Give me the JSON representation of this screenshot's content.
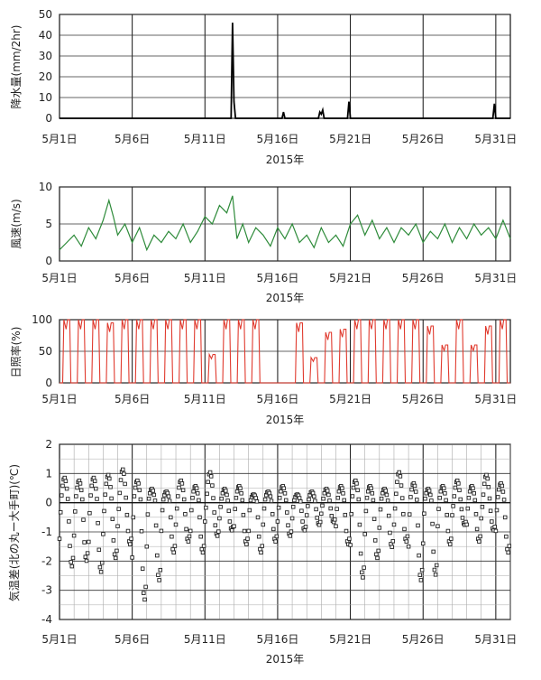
{
  "chart_data": [
    {
      "type": "line",
      "ylabel": "降水量(mm/2hr)",
      "xlabel": "2015年",
      "ylim": [
        0,
        50
      ],
      "yticks": [
        "0",
        "10",
        "20",
        "30",
        "40",
        "50"
      ],
      "xticks": [
        "5月1日",
        "5月6日",
        "5月11日",
        "5月16日",
        "5月21日",
        "5月26日",
        "5月31日"
      ],
      "xrange_days": [
        1,
        32
      ],
      "color": "#000000",
      "series": [
        {
          "x": [
            1,
            12.8,
            12.9,
            13.0,
            13.1,
            16.3,
            16.4,
            16.5,
            18.8,
            18.9,
            19.0,
            19.1,
            19.2,
            20.8,
            20.9,
            21.0,
            30.8,
            30.9,
            31.0,
            32
          ],
          "values": [
            0,
            0,
            46,
            8,
            0,
            0,
            3,
            0,
            0,
            3,
            2,
            4,
            0,
            0,
            8,
            0,
            0,
            7,
            0,
            0
          ]
        }
      ]
    },
    {
      "type": "line",
      "ylabel": "風速(m/s)",
      "xlabel": "2015年",
      "ylim": [
        0,
        10
      ],
      "yticks": [
        "0",
        "5",
        "10"
      ],
      "xticks": [
        "5月1日",
        "5月6日",
        "5月11日",
        "5月16日",
        "5月21日",
        "5月26日",
        "5月31日"
      ],
      "xrange_days": [
        1,
        32
      ],
      "color": "#2e8b3a",
      "series": [
        {
          "x": [
            1,
            1.5,
            2,
            2.5,
            3,
            3.5,
            4,
            4.4,
            4.7,
            5,
            5.5,
            6,
            6.5,
            7,
            7.5,
            8,
            8.5,
            9,
            9.5,
            10,
            10.5,
            11,
            11.5,
            12,
            12.5,
            12.9,
            13.2,
            13.6,
            14,
            14.5,
            15,
            15.5,
            16,
            16.5,
            17,
            17.5,
            18,
            18.5,
            19,
            19.5,
            20,
            20.5,
            21,
            21.5,
            22,
            22.5,
            23,
            23.5,
            24,
            24.5,
            25,
            25.5,
            26,
            26.5,
            27,
            27.5,
            28,
            28.5,
            29,
            29.5,
            30,
            30.5,
            31,
            31.5,
            32
          ],
          "values": [
            1.5,
            2.5,
            3.5,
            2,
            4.5,
            3,
            5.5,
            8.2,
            6,
            3.5,
            5,
            2.5,
            4.5,
            1.5,
            3.5,
            2.5,
            4,
            3,
            5,
            2.5,
            4,
            6,
            5,
            7.5,
            6.5,
            8.8,
            3,
            5,
            2.5,
            4.5,
            3.5,
            2,
            4.5,
            3,
            5,
            2.5,
            3.5,
            1.8,
            4.5,
            2.5,
            3.5,
            2,
            5,
            6.2,
            3.5,
            5.5,
            3,
            4.5,
            2.5,
            4.5,
            3.5,
            5,
            2.5,
            4,
            3,
            5,
            2.5,
            4.5,
            3,
            5,
            3.5,
            4.5,
            3,
            5.5,
            3
          ]
        }
      ]
    },
    {
      "type": "line",
      "ylabel": "日照率(%)",
      "xlabel": "2015年",
      "ylim": [
        0,
        100
      ],
      "yticks": [
        "0",
        "50",
        "100"
      ],
      "xticks": [
        "5月1日",
        "5月6日",
        "5月11日",
        "5月16日",
        "5月21日",
        "5月26日",
        "5月31日"
      ],
      "xrange_days": [
        1,
        32
      ],
      "color": "#e03a2e",
      "days": [
        {
          "start": 1,
          "peak": 100
        },
        {
          "start": 2,
          "peak": 100
        },
        {
          "start": 3,
          "peak": 100
        },
        {
          "start": 4,
          "peak": 95
        },
        {
          "start": 5,
          "peak": 100
        },
        {
          "start": 6,
          "peak": 100
        },
        {
          "start": 7,
          "peak": 100
        },
        {
          "start": 8,
          "peak": 100
        },
        {
          "start": 9,
          "peak": 100
        },
        {
          "start": 10,
          "peak": 100
        },
        {
          "start": 11,
          "peak": 45
        },
        {
          "start": 12,
          "peak": 100
        },
        {
          "start": 13,
          "peak": 100
        },
        {
          "start": 14,
          "peak": 100
        },
        {
          "start": 15,
          "peak": 0
        },
        {
          "start": 16,
          "peak": 0
        },
        {
          "start": 17,
          "peak": 95
        },
        {
          "start": 18,
          "peak": 40
        },
        {
          "start": 19,
          "peak": 80
        },
        {
          "start": 20,
          "peak": 85
        },
        {
          "start": 21,
          "peak": 100
        },
        {
          "start": 22,
          "peak": 100
        },
        {
          "start": 23,
          "peak": 100
        },
        {
          "start": 24,
          "peak": 100
        },
        {
          "start": 25,
          "peak": 100
        },
        {
          "start": 26,
          "peak": 90
        },
        {
          "start": 27,
          "peak": 60
        },
        {
          "start": 28,
          "peak": 100
        },
        {
          "start": 29,
          "peak": 60
        },
        {
          "start": 30,
          "peak": 90
        },
        {
          "start": 31,
          "peak": 100
        }
      ]
    },
    {
      "type": "scatter",
      "ylabel": "気温差(北の丸ー大手町)(℃)",
      "xlabel": "2015年",
      "ylim": [
        -4,
        2
      ],
      "yticks": [
        "-4",
        "-3",
        "-2",
        "-1",
        "0",
        "1",
        "2"
      ],
      "xticks": [
        "5月1日",
        "5月6日",
        "5月11日",
        "5月16日",
        "5月21日",
        "5月26日",
        "5月31日"
      ],
      "xrange_days": [
        1,
        32
      ],
      "color": "#222222",
      "days": [
        {
          "start": 1,
          "min": -2.3,
          "max": 0.9
        },
        {
          "start": 2,
          "min": -2.1,
          "max": 0.8
        },
        {
          "start": 3,
          "min": -2.5,
          "max": 0.9
        },
        {
          "start": 4,
          "min": -2.0,
          "max": 1.0
        },
        {
          "start": 5,
          "min": -1.5,
          "max": 1.2
        },
        {
          "start": 6,
          "min": -3.5,
          "max": 0.8
        },
        {
          "start": 7,
          "min": -2.8,
          "max": 0.5
        },
        {
          "start": 8,
          "min": -1.8,
          "max": 0.4
        },
        {
          "start": 9,
          "min": -1.4,
          "max": 0.8
        },
        {
          "start": 10,
          "min": -1.8,
          "max": 0.6
        },
        {
          "start": 11,
          "min": -1.2,
          "max": 1.1
        },
        {
          "start": 12,
          "min": -1.0,
          "max": 0.5
        },
        {
          "start": 13,
          "min": -1.5,
          "max": 0.6
        },
        {
          "start": 14,
          "min": -1.8,
          "max": 0.3
        },
        {
          "start": 15,
          "min": -1.4,
          "max": 0.4
        },
        {
          "start": 16,
          "min": -1.2,
          "max": 0.6
        },
        {
          "start": 17,
          "min": -1.0,
          "max": 0.3
        },
        {
          "start": 18,
          "min": -0.8,
          "max": 0.4
        },
        {
          "start": 19,
          "min": -0.7,
          "max": 0.5
        },
        {
          "start": 20,
          "min": -1.5,
          "max": 0.6
        },
        {
          "start": 21,
          "min": -2.7,
          "max": 0.8
        },
        {
          "start": 22,
          "min": -2.0,
          "max": 0.6
        },
        {
          "start": 23,
          "min": -1.6,
          "max": 0.5
        },
        {
          "start": 24,
          "min": -1.4,
          "max": 1.1
        },
        {
          "start": 25,
          "min": -2.8,
          "max": 0.7
        },
        {
          "start": 26,
          "min": -2.6,
          "max": 0.5
        },
        {
          "start": 27,
          "min": -1.5,
          "max": 0.6
        },
        {
          "start": 28,
          "min": -0.8,
          "max": 0.8
        },
        {
          "start": 29,
          "min": -1.4,
          "max": 0.6
        },
        {
          "start": 30,
          "min": -1.0,
          "max": 1.0
        },
        {
          "start": 31,
          "min": -1.8,
          "max": 0.7
        }
      ]
    }
  ]
}
